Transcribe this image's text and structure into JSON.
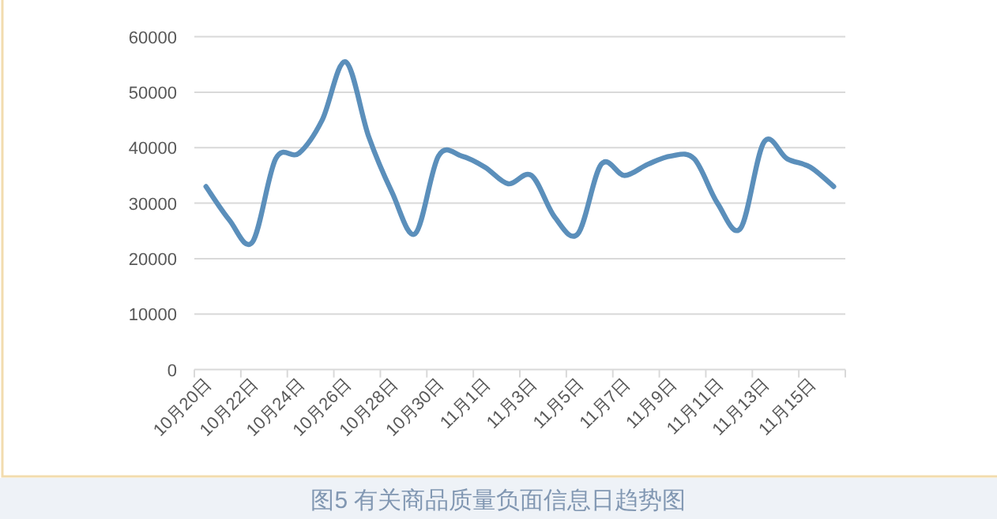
{
  "chart_data": {
    "type": "line",
    "title": "图5 有关商品质量负面信息日趋势图",
    "categories": [
      "10月20日",
      null,
      "10月22日",
      null,
      "10月24日",
      null,
      "10月26日",
      null,
      "10月28日",
      null,
      "10月30日",
      null,
      "11月1日",
      null,
      "11月3日",
      null,
      "11月5日",
      null,
      "11月7日",
      null,
      "11月9日",
      null,
      "11月11日",
      null,
      "11月13日",
      null,
      "11月15日",
      null
    ],
    "series": [
      {
        "color": "#5b8fbb",
        "values": [
          33000,
          27000,
          23000,
          38000,
          39000,
          45000,
          55500,
          42000,
          32000,
          24500,
          38500,
          38500,
          36500,
          33500,
          35000,
          27500,
          24500,
          37000,
          35000,
          37000,
          38500,
          38000,
          30000,
          25500,
          41000,
          38000,
          36500,
          33000
        ]
      }
    ],
    "ylim": [
      0,
      60000
    ],
    "yticks": [
      0,
      10000,
      20000,
      30000,
      40000,
      50000,
      60000
    ],
    "grid": "y"
  }
}
